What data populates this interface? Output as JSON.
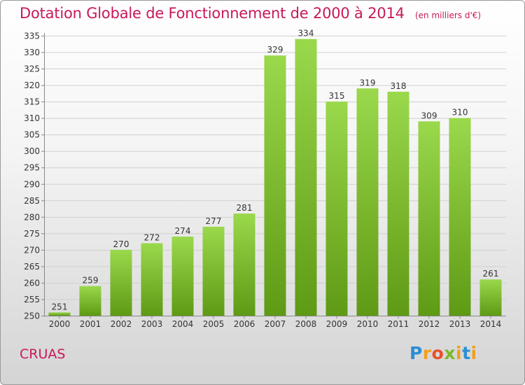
{
  "header": {
    "title": "Dotation Globale de Fonctionnement de 2000 à 2014",
    "unit": "(en milliers d'€)"
  },
  "footer": {
    "commune": "CRUAS",
    "brand": "Proxiti"
  },
  "colors": {
    "title": "#c8185a",
    "bar_light": "#9ad84c",
    "bar_dark": "#5e9a14",
    "grid": "#d0d0d0"
  },
  "chart_data": {
    "type": "bar",
    "title": "Dotation Globale de Fonctionnement de 2000 à 2014",
    "xlabel": "",
    "ylabel": "",
    "categories": [
      "2000",
      "2001",
      "2002",
      "2003",
      "2004",
      "2005",
      "2006",
      "2007",
      "2008",
      "2009",
      "2010",
      "2011",
      "2012",
      "2013",
      "2014"
    ],
    "values": [
      251,
      259,
      270,
      272,
      274,
      277,
      281,
      329,
      334,
      315,
      319,
      318,
      309,
      310,
      261
    ],
    "ylim": [
      250,
      335
    ],
    "yticks": [
      250,
      255,
      260,
      265,
      270,
      275,
      280,
      285,
      290,
      295,
      300,
      305,
      310,
      315,
      320,
      325,
      330,
      335
    ],
    "grid": true,
    "legend": "none"
  }
}
